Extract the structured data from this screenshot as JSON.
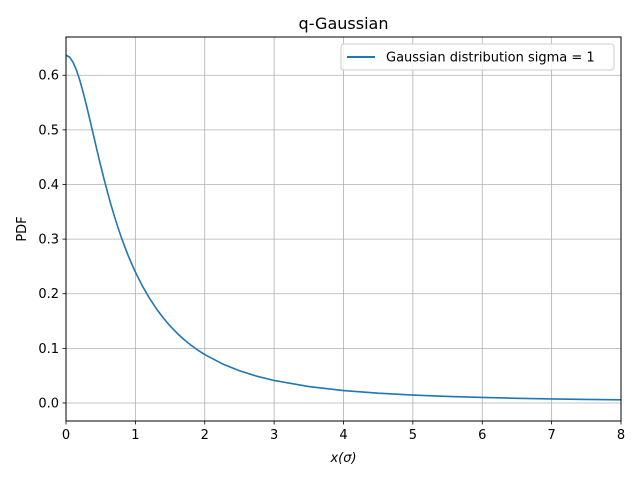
{
  "chart_data": {
    "type": "line",
    "title": "q-Gaussian",
    "xlabel": "x(σ)",
    "ylabel": "PDF",
    "xlim": [
      0,
      8
    ],
    "ylim": [
      -0.033,
      0.67
    ],
    "xticks": [
      0,
      1,
      2,
      3,
      4,
      5,
      6,
      7,
      8
    ],
    "yticks": [
      0.0,
      0.1,
      0.2,
      0.3,
      0.4,
      0.5,
      0.6
    ],
    "xtick_labels": [
      "0",
      "1",
      "2",
      "3",
      "4",
      "5",
      "6",
      "7",
      "8"
    ],
    "ytick_labels": [
      "0.0",
      "0.1",
      "0.2",
      "0.3",
      "0.4",
      "0.5",
      "0.6"
    ],
    "grid": true,
    "legend_position": "top-right",
    "series": [
      {
        "name": "Gaussian distribution sigma = 1",
        "color": "#1f77b4",
        "x": [
          0,
          0.05,
          0.1,
          0.15,
          0.2,
          0.25,
          0.3,
          0.35,
          0.4,
          0.45,
          0.5,
          0.55,
          0.6,
          0.65,
          0.7,
          0.75,
          0.8,
          0.85,
          0.9,
          0.95,
          1.0,
          1.1,
          1.2,
          1.3,
          1.4,
          1.5,
          1.6,
          1.7,
          1.8,
          1.9,
          2.0,
          2.25,
          2.5,
          2.75,
          3.0,
          3.5,
          4.0,
          4.5,
          5.0,
          5.5,
          6.0,
          6.5,
          7.0,
          7.5,
          8.0
        ],
        "y": [
          0.6366,
          0.6334,
          0.6242,
          0.6096,
          0.5903,
          0.5674,
          0.5421,
          0.5154,
          0.4881,
          0.4609,
          0.4344,
          0.409,
          0.3849,
          0.3621,
          0.3408,
          0.3209,
          0.3023,
          0.285,
          0.2688,
          0.2538,
          0.2398,
          0.2145,
          0.1924,
          0.173,
          0.156,
          0.141,
          0.1279,
          0.1162,
          0.1059,
          0.0968,
          0.0886,
          0.0719,
          0.059,
          0.049,
          0.0412,
          0.03,
          0.0228,
          0.0179,
          0.0145,
          0.012,
          0.0101,
          0.0086,
          0.0074,
          0.0065,
          0.0057
        ]
      }
    ]
  }
}
